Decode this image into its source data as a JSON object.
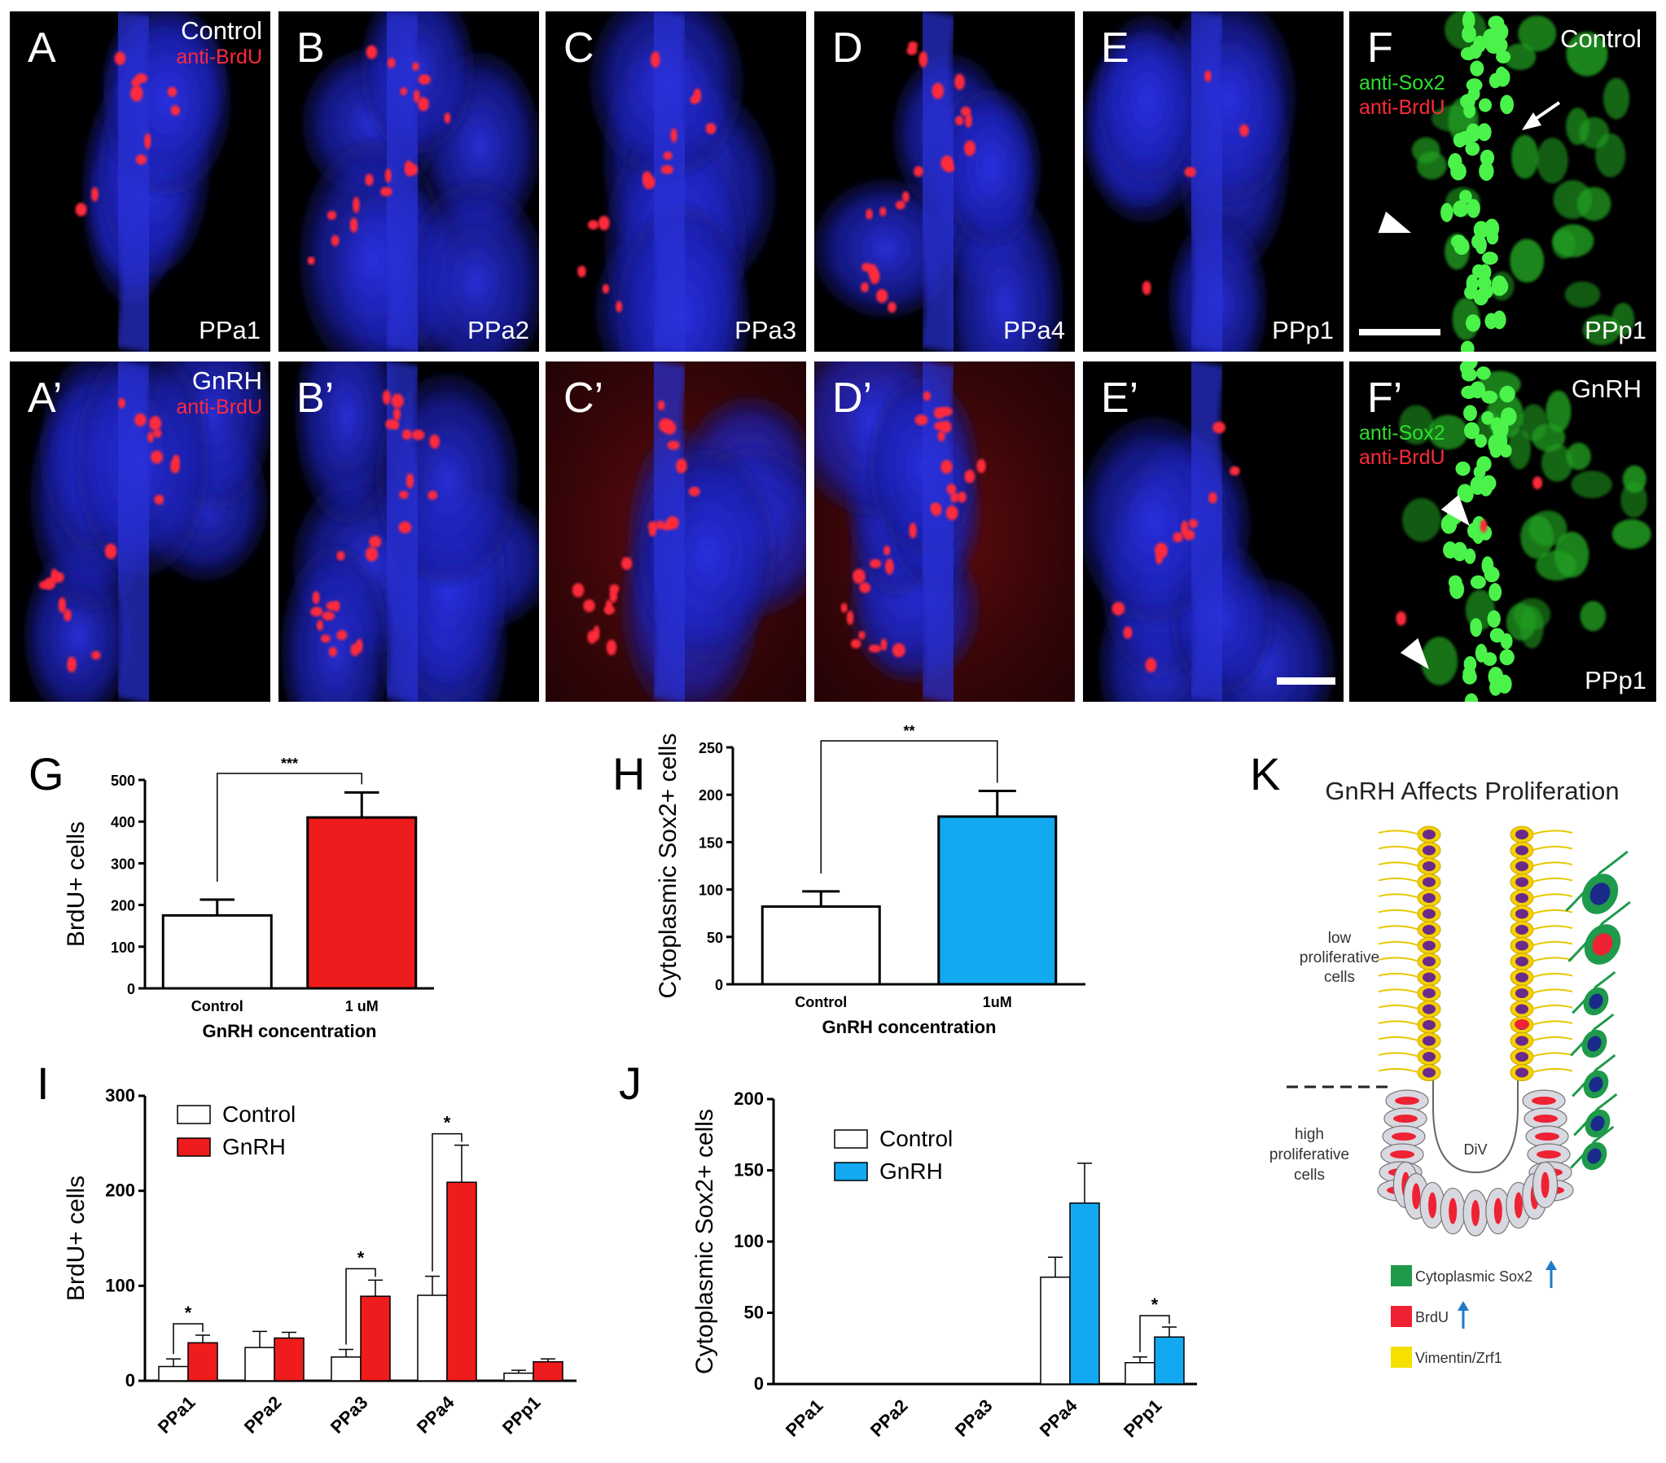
{
  "micrographs": {
    "top_row": [
      {
        "letter": "A",
        "region": "PPa1",
        "cond": "Control",
        "stain": "anti-BrdU"
      },
      {
        "letter": "B",
        "region": "PPa2"
      },
      {
        "letter": "C",
        "region": "PPa3"
      },
      {
        "letter": "D",
        "region": "PPa4"
      },
      {
        "letter": "E",
        "region": "PPp1"
      },
      {
        "letter": "F",
        "region": "PPp1",
        "cond": "Control",
        "stain1": "anti-Sox2",
        "stain2": "anti-BrdU"
      }
    ],
    "bottom_row": [
      {
        "letter": "A’",
        "cond": "GnRH",
        "stain": "anti-BrdU"
      },
      {
        "letter": "B’"
      },
      {
        "letter": "C’"
      },
      {
        "letter": "D’"
      },
      {
        "letter": "E’"
      },
      {
        "letter": "F’",
        "region": "PPp1",
        "cond": "GnRH",
        "stain1": "anti-Sox2",
        "stain2": "anti-BrdU"
      }
    ],
    "colors": {
      "nuclei": "#1a1fd6",
      "brdu": "#ff2a3a",
      "sox2": "#2ee02e",
      "background": "#000000"
    }
  },
  "chart_data": [
    {
      "panel": "G",
      "type": "bar",
      "categories": [
        "Control",
        "1 uM"
      ],
      "values": [
        175,
        410
      ],
      "errors": [
        38,
        60
      ],
      "ylabel": "BrdU+ cells",
      "xlabel": "GnRH concentration",
      "ylim": [
        0,
        500
      ],
      "yticks": [
        0,
        100,
        200,
        300,
        400,
        500
      ],
      "colors": [
        "#ffffff",
        "#ee1c1c"
      ],
      "significance": "***"
    },
    {
      "panel": "H",
      "type": "bar",
      "categories": [
        "Control",
        "1uM"
      ],
      "values": [
        82,
        177
      ],
      "errors": [
        16,
        27
      ],
      "ylabel": "Cytoplasmic Sox2+ cells",
      "xlabel": "GnRH concentration",
      "ylim": [
        0,
        250
      ],
      "yticks": [
        0,
        50,
        100,
        150,
        200,
        250
      ],
      "colors": [
        "#ffffff",
        "#12a9f0"
      ],
      "significance": "**"
    },
    {
      "panel": "I",
      "type": "bar",
      "categories": [
        "PPa1",
        "PPa2",
        "PPa3",
        "PPa4",
        "PPp1"
      ],
      "ylabel": "BrdU+ cells",
      "ylim": [
        0,
        300
      ],
      "yticks": [
        0,
        100,
        200,
        300
      ],
      "series": [
        {
          "name": "Control",
          "values": [
            15,
            35,
            25,
            90,
            8
          ],
          "errors": [
            8,
            17,
            8,
            20,
            3
          ],
          "color": "#ffffff"
        },
        {
          "name": "GnRH",
          "values": [
            40,
            45,
            89,
            209,
            20
          ],
          "errors": [
            8,
            6,
            17,
            39,
            3
          ],
          "color": "#ee1c1c"
        }
      ],
      "significance": [
        {
          "group": 0,
          "mark": "*"
        },
        {
          "group": 2,
          "mark": "*"
        },
        {
          "group": 3,
          "mark": "*"
        }
      ],
      "legend": "top-left"
    },
    {
      "panel": "J",
      "type": "bar",
      "categories": [
        "PPa1",
        "PPa2",
        "PPa3",
        "PPa4",
        "PPp1"
      ],
      "ylabel": "Cytoplasmic Sox2+ cells",
      "ylim": [
        0,
        200
      ],
      "yticks": [
        0,
        50,
        100,
        150,
        200
      ],
      "series": [
        {
          "name": "Control",
          "values": [
            0,
            0,
            0,
            75,
            15
          ],
          "errors": [
            0,
            0,
            0,
            14,
            4
          ],
          "color": "#ffffff"
        },
        {
          "name": "GnRH",
          "values": [
            0,
            0,
            0,
            127,
            33
          ],
          "errors": [
            0,
            0,
            0,
            28,
            7
          ],
          "color": "#12a9f0"
        }
      ],
      "significance": [
        {
          "group": 4,
          "mark": "*"
        }
      ],
      "legend": "top-left"
    }
  ],
  "panel_letters": {
    "G": "G",
    "H": "H",
    "I": "I",
    "J": "J",
    "K": "K"
  },
  "diagram_k": {
    "title": "GnRH Affects Proliferation",
    "low_label": [
      "low",
      "proliferative",
      "cells"
    ],
    "high_label": [
      "high",
      "proliferative",
      "cells"
    ],
    "ventricle": "DiV",
    "legend": [
      {
        "label": "Cytoplasmic Sox2",
        "color": "#1e9a4a",
        "arrow": true
      },
      {
        "label": "BrdU",
        "color": "#ee2233",
        "arrow": true
      },
      {
        "label": "Vimentin/Zrf1",
        "color": "#f5e000",
        "arrow": false
      }
    ]
  }
}
